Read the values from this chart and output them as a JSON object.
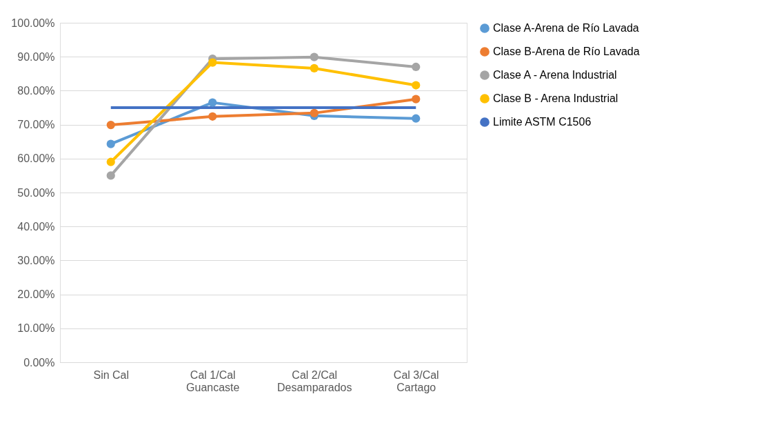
{
  "chart_data": {
    "type": "line",
    "categories": [
      "Sin Cal",
      "Cal 1/Cal Guancaste",
      "Cal 2/Cal Desamparados",
      "Cal 3/Cal Cartago"
    ],
    "series": [
      {
        "name": "Clase A-Arena de Río Lavada",
        "color": "#5b9bd5",
        "marker": "circle",
        "values": [
          64.3,
          76.5,
          72.6,
          71.8
        ]
      },
      {
        "name": "Clase B-Arena de Río Lavada",
        "color": "#ed7d31",
        "marker": "circle",
        "values": [
          69.9,
          72.4,
          73.4,
          77.5
        ]
      },
      {
        "name": "Clase A - Arena Industrial",
        "color": "#a5a5a5",
        "marker": "circle",
        "values": [
          55.0,
          89.4,
          89.9,
          87.0
        ]
      },
      {
        "name": "Clase B - Arena Industrial",
        "color": "#ffc000",
        "marker": "circle",
        "values": [
          59.0,
          88.3,
          86.6,
          81.6
        ]
      },
      {
        "name": "Limite ASTM C1506",
        "color": "#4472c4",
        "marker": "none",
        "values": [
          75,
          75,
          75,
          75
        ]
      }
    ],
    "ylim": [
      0,
      100
    ],
    "yticks": [
      {
        "value": 0,
        "label": "0.00%"
      },
      {
        "value": 10,
        "label": "10.00%"
      },
      {
        "value": 20,
        "label": "20.00%"
      },
      {
        "value": 30,
        "label": "30.00%"
      },
      {
        "value": 40,
        "label": "40.00%"
      },
      {
        "value": 50,
        "label": "50.00%"
      },
      {
        "value": 60,
        "label": "60.00%"
      },
      {
        "value": 70,
        "label": "70.00%"
      },
      {
        "value": 80,
        "label": "80.00%"
      },
      {
        "value": 90,
        "label": "90.00%"
      },
      {
        "value": 100,
        "label": "100.00%"
      }
    ],
    "grid": "y",
    "legend": "right",
    "line_style": "solid"
  }
}
